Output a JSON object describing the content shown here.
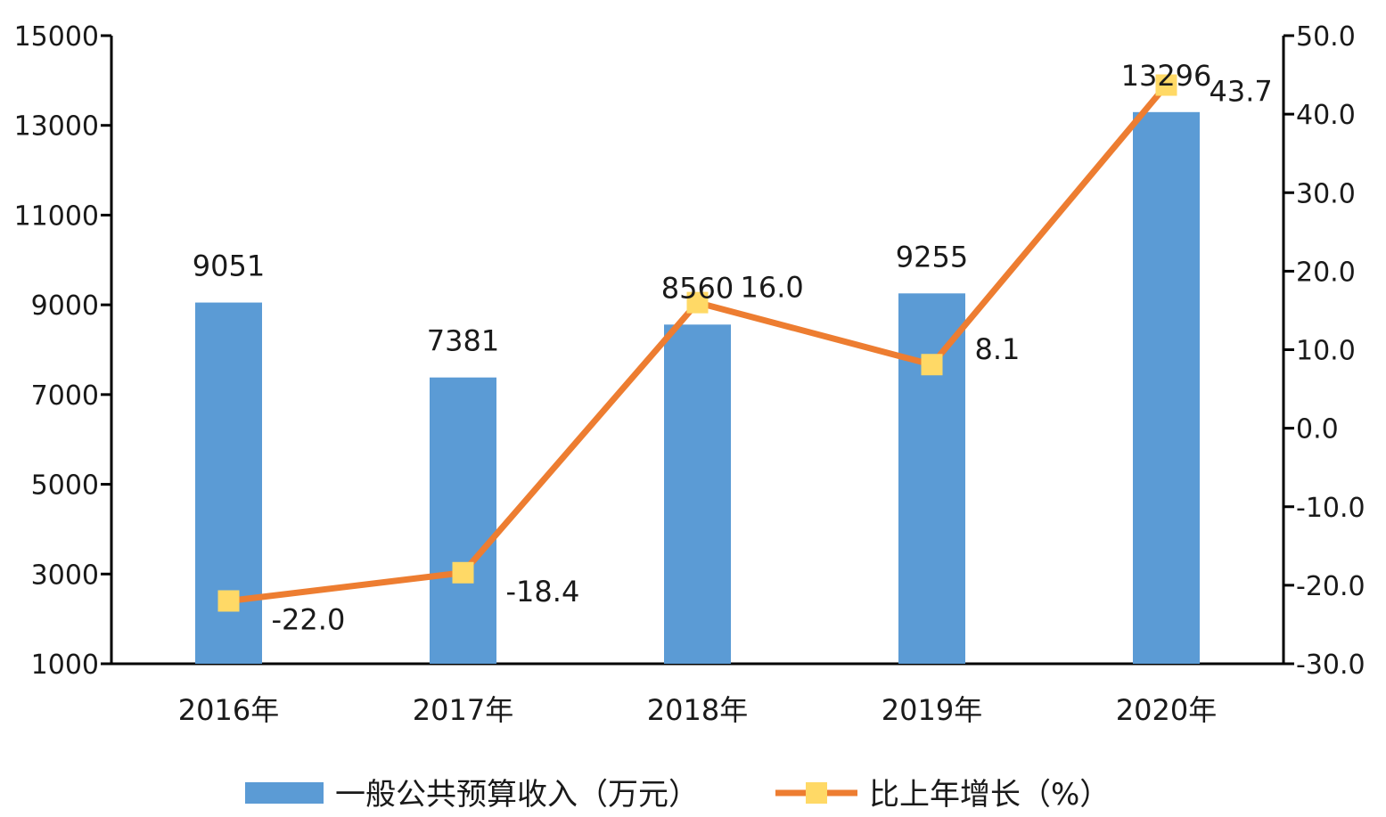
{
  "chart_data": {
    "type": "bar",
    "categories": [
      "2016年",
      "2017年",
      "2018年",
      "2019年",
      "2020年"
    ],
    "series": [
      {
        "name": "一般公共预算收入（万元）",
        "type": "bar",
        "axis": "left",
        "color": "#5b9bd5",
        "values": [
          9051,
          7381,
          8560,
          9255,
          13296
        ],
        "labels": [
          "9051",
          "7381",
          "8560",
          "9255",
          "13296"
        ]
      },
      {
        "name": "比上年增长（%）",
        "type": "line",
        "axis": "right",
        "color": "#ed7d31",
        "marker_color": "#ffd966",
        "values": [
          -22.0,
          -18.4,
          16.0,
          8.1,
          43.7
        ],
        "labels": [
          "-22.0",
          "-18.4",
          "16.0",
          "8.1",
          "43.7"
        ]
      }
    ],
    "y_left": {
      "min": 1000,
      "max": 15000,
      "ticks": [
        1000,
        3000,
        5000,
        7000,
        9000,
        11000,
        13000,
        15000
      ],
      "tick_labels": [
        "1000",
        "3000",
        "5000",
        "7000",
        "9000",
        "11000",
        "13000",
        "15000"
      ]
    },
    "y_right": {
      "min": -30,
      "max": 50,
      "ticks": [
        -30,
        -20,
        -10,
        0,
        10,
        20,
        30,
        40,
        50
      ],
      "tick_labels": [
        "-30.0",
        "-20.0",
        "-10.0",
        "0.0",
        "10.0",
        "20.0",
        "30.0",
        "40.0",
        "50.0"
      ]
    },
    "grid": false,
    "legend": "bottom"
  }
}
